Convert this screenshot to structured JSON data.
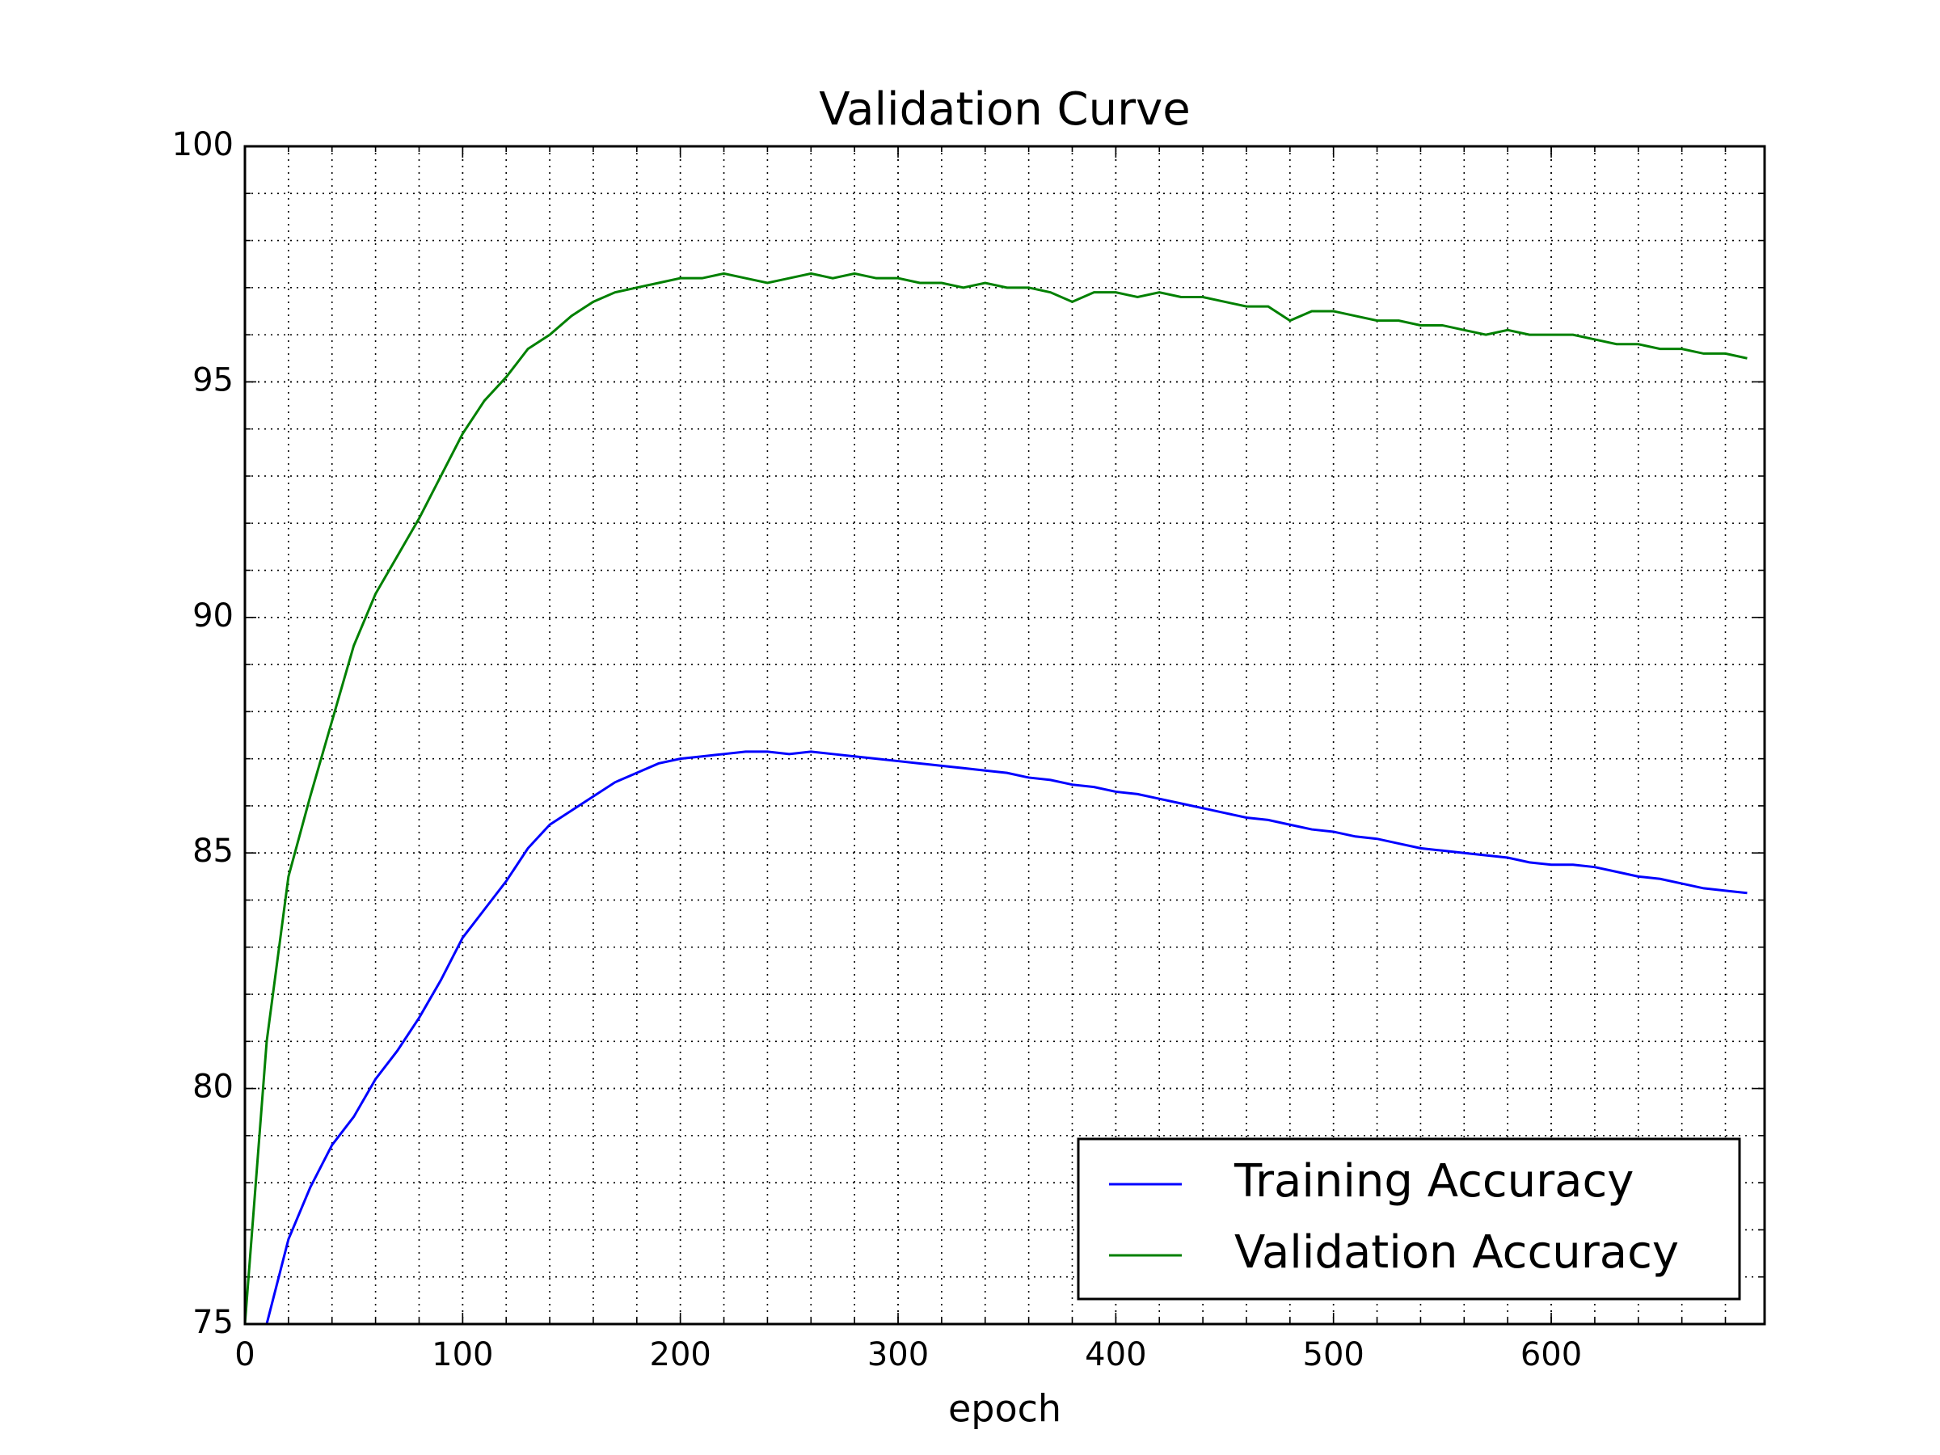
{
  "chart_data": {
    "type": "line",
    "title": "Validation Curve",
    "x_label": "epoch",
    "x": [
      0,
      10,
      20,
      30,
      40,
      50,
      60,
      70,
      80,
      90,
      100,
      110,
      120,
      130,
      140,
      150,
      160,
      170,
      180,
      190,
      200,
      210,
      220,
      230,
      240,
      250,
      260,
      270,
      280,
      290,
      300,
      310,
      320,
      330,
      340,
      350,
      360,
      370,
      380,
      390,
      400,
      410,
      420,
      430,
      440,
      450,
      460,
      470,
      480,
      490,
      500,
      510,
      520,
      530,
      540,
      550,
      560,
      570,
      580,
      590,
      600,
      610,
      620,
      630,
      640,
      650,
      660,
      670,
      680,
      690
    ],
    "series": [
      {
        "name": "Training Accuracy",
        "color": "#0000ff",
        "values": [
          null,
          75.0,
          76.8,
          77.9,
          78.8,
          79.4,
          80.2,
          80.8,
          81.5,
          82.3,
          83.2,
          83.8,
          84.4,
          85.1,
          85.6,
          85.9,
          86.2,
          86.5,
          86.7,
          86.9,
          87.0,
          87.05,
          87.1,
          87.15,
          87.15,
          87.1,
          87.15,
          87.1,
          87.05,
          87.0,
          86.95,
          86.9,
          86.85,
          86.8,
          86.75,
          86.7,
          86.6,
          86.55,
          86.45,
          86.4,
          86.3,
          86.25,
          86.15,
          86.05,
          85.95,
          85.85,
          85.75,
          85.7,
          85.6,
          85.5,
          85.45,
          85.35,
          85.3,
          85.2,
          85.1,
          85.05,
          85.0,
          84.95,
          84.9,
          84.8,
          84.75,
          84.75,
          84.7,
          84.6,
          84.5,
          84.45,
          84.35,
          84.25,
          84.2,
          84.15
        ]
      },
      {
        "name": "Validation Accuracy",
        "color": "#008000",
        "values": [
          75.0,
          81.0,
          84.5,
          86.2,
          87.8,
          89.4,
          90.5,
          91.3,
          92.1,
          93.0,
          93.9,
          94.6,
          95.1,
          95.7,
          96.0,
          96.4,
          96.7,
          96.9,
          97.0,
          97.1,
          97.2,
          97.2,
          97.3,
          97.2,
          97.1,
          97.2,
          97.3,
          97.2,
          97.3,
          97.2,
          97.2,
          97.1,
          97.1,
          97.0,
          97.1,
          97.0,
          97.0,
          96.9,
          96.7,
          96.9,
          96.9,
          96.8,
          96.9,
          96.8,
          96.8,
          96.7,
          96.6,
          96.6,
          96.3,
          96.5,
          96.5,
          96.4,
          96.3,
          96.3,
          96.2,
          96.2,
          96.1,
          96.0,
          96.1,
          96.0,
          96.0,
          96.0,
          95.9,
          95.8,
          95.8,
          95.7,
          95.7,
          95.6,
          95.6,
          95.5
        ]
      }
    ],
    "xlim": [
      0,
      698
    ],
    "ylim": [
      75,
      100
    ],
    "xticks": [
      0,
      100,
      200,
      300,
      400,
      500,
      600
    ],
    "yticks": [
      75,
      80,
      85,
      90,
      95,
      100
    ],
    "xminorticks": [
      20,
      40,
      60,
      80,
      100,
      120,
      140,
      160,
      180,
      200,
      220,
      240,
      260,
      280,
      300,
      320,
      340,
      360,
      380,
      400,
      420,
      440,
      460,
      480,
      500,
      520,
      540,
      560,
      580,
      600,
      620,
      640,
      660,
      680
    ],
    "yminorticks": [
      76,
      77,
      78,
      79,
      80,
      81,
      82,
      83,
      84,
      85,
      86,
      87,
      88,
      89,
      90,
      91,
      92,
      93,
      94,
      95,
      96,
      97,
      98,
      99
    ],
    "grid": true,
    "legend": "lower right"
  }
}
